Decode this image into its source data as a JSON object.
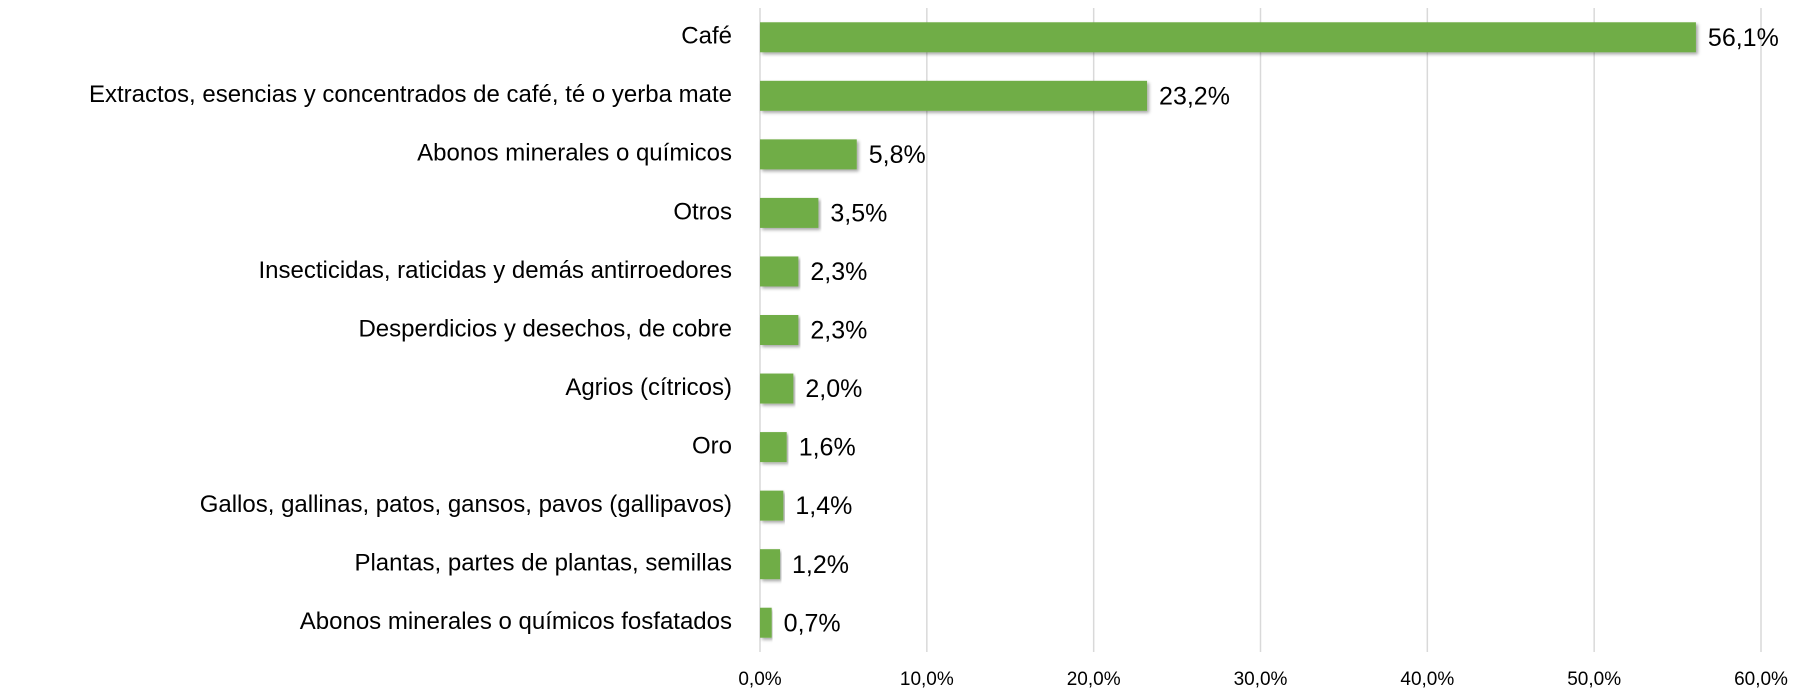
{
  "chart_data": {
    "type": "hbar",
    "categories": [
      "Café",
      "Extractos, esencias y concentrados de café, té o yerba mate",
      "Abonos minerales o químicos",
      "Otros",
      "Insecticidas, raticidas y demás antirroedores",
      "Desperdicios y desechos, de cobre",
      "Agrios (cítricos)",
      "Oro",
      "Gallos, gallinas, patos, gansos, pavos (gallipavos)",
      "Plantas, partes de plantas, semillas",
      "Abonos minerales o químicos fosfatados"
    ],
    "values": [
      56.1,
      23.2,
      5.8,
      3.5,
      2.3,
      2.3,
      2.0,
      1.6,
      1.4,
      1.2,
      0.7
    ],
    "value_labels": [
      "56,1%",
      "23,2%",
      "5,8%",
      "3,5%",
      "2,3%",
      "2,3%",
      "2,0%",
      "1,6%",
      "1,4%",
      "1,2%",
      "0,7%"
    ],
    "color": "#70ad47",
    "xlim": [
      0,
      60
    ],
    "xticks": [
      {
        "value": 0,
        "label": "0,0%"
      },
      {
        "value": 10,
        "label": "10,0%"
      },
      {
        "value": 20,
        "label": "20,0%"
      },
      {
        "value": 30,
        "label": "30,0%"
      },
      {
        "value": 40,
        "label": "40,0%"
      },
      {
        "value": 50,
        "label": "50,0%"
      },
      {
        "value": 60,
        "label": "60,0%"
      }
    ],
    "grid": true
  }
}
